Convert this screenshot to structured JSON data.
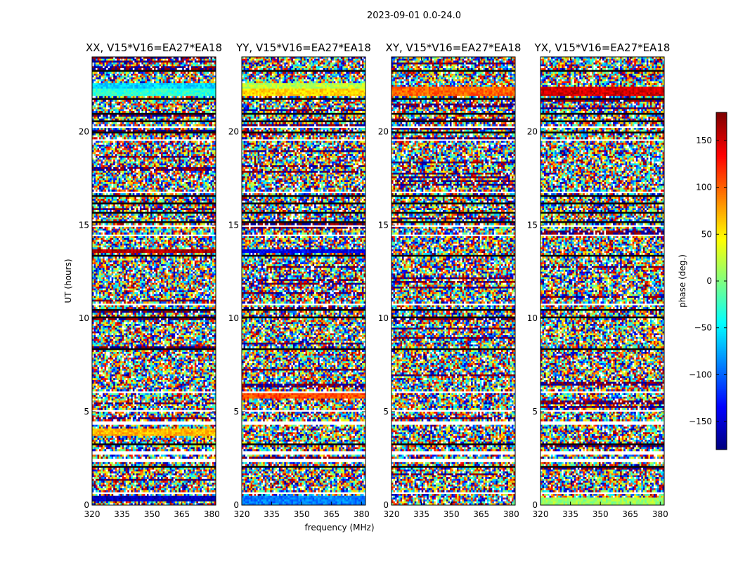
{
  "figure": {
    "suptitle": "2023-09-01 0.0-24.0",
    "colors": {
      "background": "#ffffff",
      "axis": "#000000"
    }
  },
  "chart_data": {
    "type": "heatmap",
    "xlabel": "frequency (MHz)",
    "ylabel": "UT (hours)",
    "xlim": [
      320,
      382
    ],
    "ylim": [
      0,
      24
    ],
    "xticks": [
      320,
      335,
      350,
      365,
      380
    ],
    "yticks": [
      0,
      5,
      10,
      15,
      20
    ],
    "colormap": "jet",
    "colorbar": {
      "label": "phase (deg.)",
      "range": [
        -180,
        180
      ],
      "ticks": [
        -150,
        -100,
        -50,
        0,
        50,
        100,
        150
      ],
      "tick_labels": [
        "−150",
        "−100",
        "−50",
        "0",
        "50",
        "100",
        "150"
      ]
    },
    "panels": [
      {
        "title": "XX, V15*V16=EA27*EA18",
        "coherent_bands": [
          {
            "ut": [
              0.15,
              0.55
            ],
            "phase": -160
          },
          {
            "ut": [
              3.7,
              4.1
            ],
            "phase": 70
          },
          {
            "ut": [
              13.5,
              13.75
            ],
            "phase": 160
          },
          {
            "ut": [
              21.95,
              22.35
            ],
            "phase": -30
          },
          {
            "ut": [
              22.35,
              22.6
            ],
            "phase": -60
          }
        ]
      },
      {
        "title": "YY, V15*V16=EA27*EA18",
        "coherent_bands": [
          {
            "ut": [
              0.05,
              0.45
            ],
            "phase": -90
          },
          {
            "ut": [
              5.7,
              5.95
            ],
            "phase": 110
          },
          {
            "ut": [
              13.5,
              13.75
            ],
            "phase": -140
          },
          {
            "ut": [
              21.95,
              22.35
            ],
            "phase": 60
          },
          {
            "ut": [
              22.35,
              22.6
            ],
            "phase": 20
          }
        ]
      },
      {
        "title": "XY, V15*V16=EA27*EA18",
        "coherent_bands": [
          {
            "ut": [
              21.9,
              22.4
            ],
            "phase": 100
          }
        ]
      },
      {
        "title": "YX, V15*V16=EA27*EA18",
        "coherent_bands": [
          {
            "ut": [
              0.05,
              0.4
            ],
            "phase": 10
          },
          {
            "ut": [
              21.9,
              22.4
            ],
            "phase": 150
          }
        ]
      }
    ],
    "flagged_ut_ranges": [
      [
        0.6,
        0.75
      ],
      [
        2.3,
        2.45
      ],
      [
        2.75,
        2.9
      ],
      [
        4.3,
        4.45
      ],
      [
        5.0,
        5.1
      ],
      [
        6.0,
        6.1
      ],
      [
        10.7,
        10.78
      ],
      [
        14.4,
        14.55
      ],
      [
        14.95,
        15.05
      ],
      [
        16.75,
        16.85
      ],
      [
        19.55,
        19.65
      ],
      [
        20.25,
        20.3
      ]
    ],
    "dark_ut_ranges": [
      [
        1.0,
        1.05
      ],
      [
        2.05,
        2.12
      ],
      [
        3.25,
        3.35
      ],
      [
        3.5,
        3.55
      ],
      [
        8.35,
        8.45
      ],
      [
        8.9,
        8.95
      ],
      [
        9.3,
        9.35
      ],
      [
        10.05,
        10.15
      ],
      [
        10.45,
        10.5
      ],
      [
        11.9,
        11.95
      ],
      [
        13.35,
        13.42
      ],
      [
        15.15,
        15.2
      ],
      [
        15.65,
        15.72
      ],
      [
        16.1,
        16.2
      ],
      [
        16.55,
        16.6
      ],
      [
        19.0,
        19.05
      ],
      [
        19.95,
        20.02
      ],
      [
        20.55,
        20.62
      ],
      [
        20.95,
        21.05
      ],
      [
        21.4,
        21.45
      ],
      [
        21.75,
        21.8
      ],
      [
        22.9,
        22.95
      ],
      [
        23.25,
        23.32
      ],
      [
        23.7,
        23.75
      ]
    ]
  }
}
